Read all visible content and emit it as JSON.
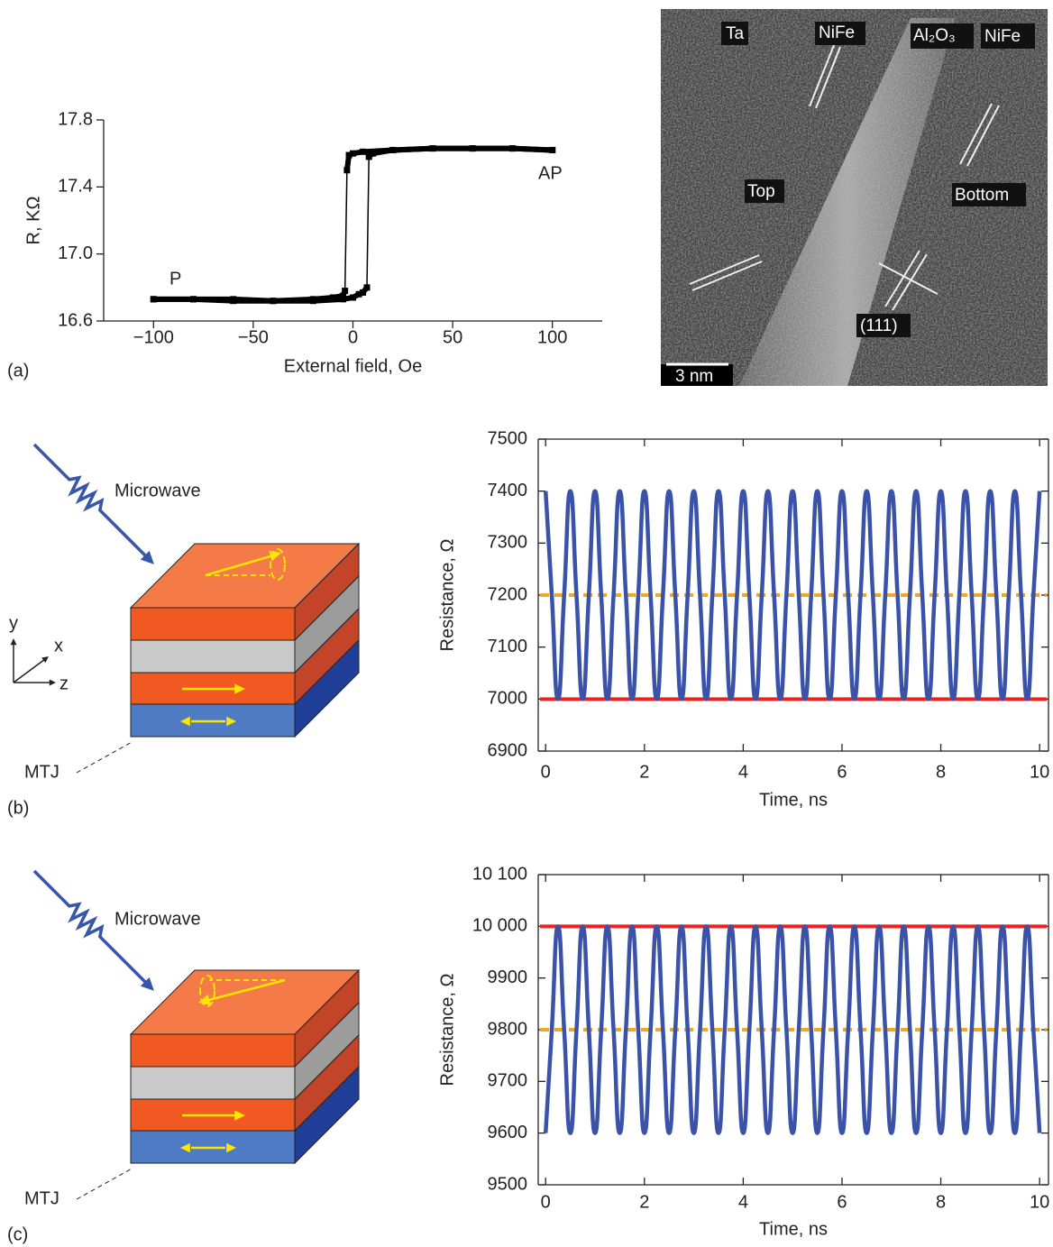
{
  "chart_data": [
    {
      "type": "line",
      "x_label": "External field, Oe",
      "y_label": "R, KΩ",
      "annotations": [
        "P",
        "AP"
      ],
      "xlim": [
        -125,
        125
      ],
      "xticks": [
        {
          "value": -100,
          "label": "−100"
        },
        {
          "value": -50,
          "label": "−50"
        },
        0,
        50,
        100
      ],
      "ylim": [
        16.6,
        17.8
      ],
      "yticks": [
        16.6,
        {
          "value": 17,
          "label": "17.0"
        },
        17.4,
        17.8
      ],
      "series": [
        {
          "color": "#000000",
          "x": [
            -100,
            -80,
            -60,
            -40,
            -20,
            -5,
            0,
            3,
            5,
            7,
            8,
            10,
            20,
            40,
            60,
            80,
            100
          ],
          "values": [
            16.73,
            16.73,
            16.73,
            16.72,
            16.72,
            16.73,
            16.74,
            16.76,
            16.77,
            16.8,
            17.58,
            17.6,
            17.62,
            17.63,
            17.63,
            17.63,
            17.62
          ]
        },
        {
          "color": "#000000",
          "x": [
            100,
            80,
            60,
            40,
            20,
            5,
            0,
            -2,
            -3,
            -4,
            -5,
            -10,
            -20,
            -40,
            -60,
            -80,
            -100
          ],
          "values": [
            17.62,
            17.63,
            17.63,
            17.63,
            17.62,
            17.61,
            17.6,
            17.59,
            17.5,
            16.78,
            16.75,
            16.74,
            16.73,
            16.72,
            16.72,
            16.73,
            16.73
          ]
        }
      ]
    },
    {
      "type": "line",
      "x_label": "Time, ns",
      "y_label": "Resistance, Ω",
      "xlim": [
        -0.15,
        10.18
      ],
      "xticks": [
        0,
        2,
        4,
        6,
        8,
        10
      ],
      "ylim": [
        6900,
        7500
      ],
      "yticks": [
        6900,
        7000,
        7100,
        7200,
        7300,
        7400,
        7500
      ],
      "hlines": [
        {
          "value": 7000,
          "color": "#ee2222",
          "dash": false
        },
        {
          "value": 7200,
          "color": "#f5a623",
          "dash": true
        }
      ],
      "series": [
        {
          "color": "#3a52a8",
          "x": [
            0,
            0.125,
            0.25,
            0.375,
            0.5,
            0.625,
            0.75,
            0.875,
            1,
            1.125,
            1.25,
            1.375,
            1.5,
            1.625,
            1.75,
            1.875,
            2,
            2.125,
            2.25,
            2.375,
            2.5,
            2.625,
            2.75,
            2.875,
            3,
            3.125,
            3.25,
            3.375,
            3.5,
            3.625,
            3.75,
            3.875,
            4,
            4.125,
            4.25,
            4.375,
            4.5,
            4.625,
            4.75,
            4.875,
            5,
            5.125,
            5.25,
            5.375,
            5.5,
            5.625,
            5.75,
            5.875,
            6,
            6.125,
            6.25,
            6.375,
            6.5,
            6.625,
            6.75,
            6.875,
            7,
            7.125,
            7.25,
            7.375,
            7.5,
            7.625,
            7.75,
            7.875,
            8,
            8.125,
            8.25,
            8.375,
            8.5,
            8.625,
            8.75,
            8.875,
            9,
            9.125,
            9.25,
            9.375,
            9.5,
            9.625,
            9.75,
            9.875,
            10
          ],
          "values": [
            7400,
            7200,
            7000,
            7200,
            7400,
            7200,
            7000,
            7200,
            7400,
            7200,
            7000,
            7200,
            7400,
            7200,
            7000,
            7200,
            7400,
            7200,
            7000,
            7200,
            7400,
            7200,
            7000,
            7200,
            7400,
            7200,
            7000,
            7200,
            7400,
            7200,
            7000,
            7200,
            7400,
            7200,
            7000,
            7200,
            7400,
            7200,
            7000,
            7200,
            7400,
            7200,
            7000,
            7200,
            7400,
            7200,
            7000,
            7200,
            7400,
            7200,
            7000,
            7200,
            7400,
            7200,
            7000,
            7200,
            7400,
            7200,
            7000,
            7200,
            7400,
            7200,
            7000,
            7200,
            7400,
            7200,
            7000,
            7200,
            7400,
            7200,
            7000,
            7200,
            7400,
            7200,
            7000,
            7200,
            7400,
            7200,
            7000,
            7200,
            7400
          ]
        }
      ]
    },
    {
      "type": "line",
      "x_label": "Time, ns",
      "y_label": "Resistance, Ω",
      "xlim": [
        -0.15,
        10.18
      ],
      "xticks": [
        0,
        2,
        4,
        6,
        8,
        10
      ],
      "ylim": [
        9500,
        10100
      ],
      "yticks": [
        9500,
        9600,
        9700,
        9800,
        9900,
        {
          "value": 10000,
          "label": "10 000"
        },
        {
          "value": 10100,
          "label": "10 100"
        }
      ],
      "hlines": [
        {
          "value": 10000,
          "color": "#ee2222",
          "dash": false
        },
        {
          "value": 9800,
          "color": "#f5a623",
          "dash": true
        }
      ],
      "series": [
        {
          "color": "#3a52a8",
          "x": [
            0,
            0.125,
            0.25,
            0.375,
            0.5,
            0.625,
            0.75,
            0.875,
            1,
            1.125,
            1.25,
            1.375,
            1.5,
            1.625,
            1.75,
            1.875,
            2,
            2.125,
            2.25,
            2.375,
            2.5,
            2.625,
            2.75,
            2.875,
            3,
            3.125,
            3.25,
            3.375,
            3.5,
            3.625,
            3.75,
            3.875,
            4,
            4.125,
            4.25,
            4.375,
            4.5,
            4.625,
            4.75,
            4.875,
            5,
            5.125,
            5.25,
            5.375,
            5.5,
            5.625,
            5.75,
            5.875,
            6,
            6.125,
            6.25,
            6.375,
            6.5,
            6.625,
            6.75,
            6.875,
            7,
            7.125,
            7.25,
            7.375,
            7.5,
            7.625,
            7.75,
            7.875,
            8,
            8.125,
            8.25,
            8.375,
            8.5,
            8.625,
            8.75,
            8.875,
            9,
            9.125,
            9.25,
            9.375,
            9.5,
            9.625,
            9.75,
            9.875,
            10
          ],
          "values": [
            9600,
            9800,
            10000,
            9800,
            9600,
            9800,
            10000,
            9800,
            9600,
            9800,
            10000,
            9800,
            9600,
            9800,
            10000,
            9800,
            9600,
            9800,
            10000,
            9800,
            9600,
            9800,
            10000,
            9800,
            9600,
            9800,
            10000,
            9800,
            9600,
            9800,
            10000,
            9800,
            9600,
            9800,
            10000,
            9800,
            9600,
            9800,
            10000,
            9800,
            9600,
            9800,
            10000,
            9800,
            9600,
            9800,
            10000,
            9800,
            9600,
            9800,
            10000,
            9800,
            9600,
            9800,
            10000,
            9800,
            9600,
            9800,
            10000,
            9800,
            9600,
            9800,
            10000,
            9800,
            9600,
            9800,
            10000,
            9800,
            9600,
            9800,
            10000,
            9800,
            9600,
            9800,
            10000,
            9800,
            9600,
            9800,
            10000,
            9800,
            9600
          ]
        }
      ]
    }
  ],
  "panel_labels": [
    "(a)",
    "(b)",
    "(c)"
  ],
  "micrograph": {
    "labels": [
      "Ta",
      "NiFe",
      "Al₂O₃",
      "NiFe",
      "Top",
      "Bottom",
      "(111)"
    ],
    "scale_bar": "3 nm"
  },
  "diagrams": [
    {
      "wave": "Microwave",
      "axes": [
        "y",
        "x",
        "z"
      ],
      "device": "MTJ"
    },
    {
      "wave": "Microwave",
      "device": "MTJ"
    }
  ]
}
